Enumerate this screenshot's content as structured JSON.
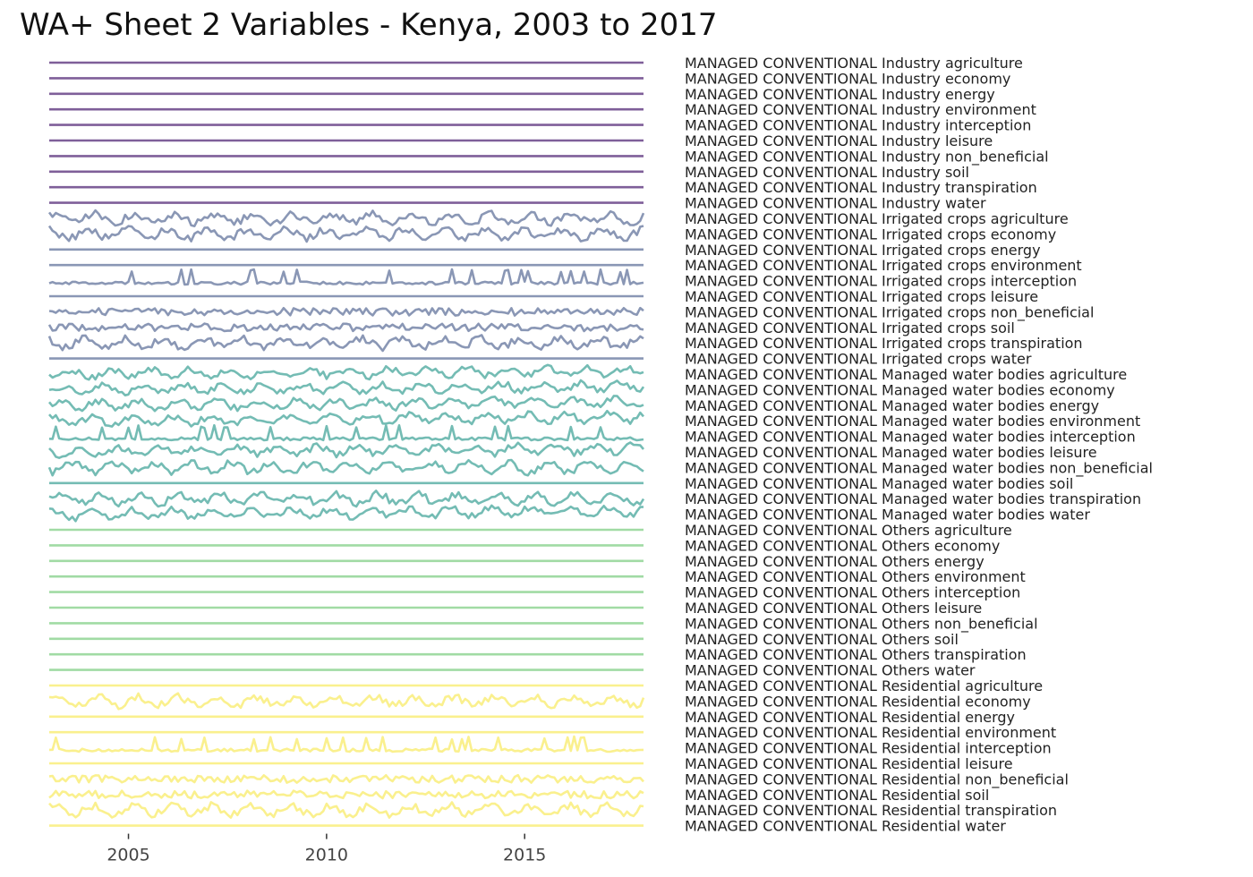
{
  "chart_data": {
    "type": "line",
    "title": "WA+ Sheet 2 Variables - Kenya, 2003 to 2017",
    "xlabel": "",
    "ylabel": "",
    "xlim": [
      2003.0,
      2018.0
    ],
    "x_ticks": [
      2005,
      2010,
      2015
    ],
    "grid": false,
    "legend": "direct labels to the right of each line",
    "series_colors": {
      "Industry": "#7f5f99",
      "Irrigated crops": "#8a97b5",
      "Managed water bodies": "#74bcb4",
      "Others": "#a1dba4",
      "Residential": "#faf08e"
    },
    "series": [
      {
        "name": "MANAGED CONVENTIONAL Industry agriculture",
        "group": "Industry",
        "pattern": "flat"
      },
      {
        "name": "MANAGED CONVENTIONAL Industry economy",
        "group": "Industry",
        "pattern": "flat"
      },
      {
        "name": "MANAGED CONVENTIONAL Industry energy",
        "group": "Industry",
        "pattern": "flat"
      },
      {
        "name": "MANAGED CONVENTIONAL Industry environment",
        "group": "Industry",
        "pattern": "flat"
      },
      {
        "name": "MANAGED CONVENTIONAL Industry interception",
        "group": "Industry",
        "pattern": "flat"
      },
      {
        "name": "MANAGED CONVENTIONAL Industry leisure",
        "group": "Industry",
        "pattern": "flat"
      },
      {
        "name": "MANAGED CONVENTIONAL Industry non_beneficial",
        "group": "Industry",
        "pattern": "flat"
      },
      {
        "name": "MANAGED CONVENTIONAL Industry soil",
        "group": "Industry",
        "pattern": "flat"
      },
      {
        "name": "MANAGED CONVENTIONAL Industry transpiration",
        "group": "Industry",
        "pattern": "flat"
      },
      {
        "name": "MANAGED CONVENTIONAL Industry water",
        "group": "Industry",
        "pattern": "flat"
      },
      {
        "name": "MANAGED CONVENTIONAL Irrigated crops agriculture",
        "group": "Irrigated crops",
        "pattern": "wavy"
      },
      {
        "name": "MANAGED CONVENTIONAL Irrigated crops economy",
        "group": "Irrigated crops",
        "pattern": "wavy"
      },
      {
        "name": "MANAGED CONVENTIONAL Irrigated crops energy",
        "group": "Irrigated crops",
        "pattern": "flat"
      },
      {
        "name": "MANAGED CONVENTIONAL Irrigated crops environment",
        "group": "Irrigated crops",
        "pattern": "flat"
      },
      {
        "name": "MANAGED CONVENTIONAL Irrigated crops interception",
        "group": "Irrigated crops",
        "pattern": "spiky"
      },
      {
        "name": "MANAGED CONVENTIONAL Irrigated crops leisure",
        "group": "Irrigated crops",
        "pattern": "flat"
      },
      {
        "name": "MANAGED CONVENTIONAL Irrigated crops non_beneficial",
        "group": "Irrigated crops",
        "pattern": "noisy"
      },
      {
        "name": "MANAGED CONVENTIONAL Irrigated crops soil",
        "group": "Irrigated crops",
        "pattern": "noisy"
      },
      {
        "name": "MANAGED CONVENTIONAL Irrigated crops transpiration",
        "group": "Irrigated crops",
        "pattern": "wavy"
      },
      {
        "name": "MANAGED CONVENTIONAL Irrigated crops water",
        "group": "Irrigated crops",
        "pattern": "flat"
      },
      {
        "name": "MANAGED CONVENTIONAL Managed water bodies agriculture",
        "group": "Managed water bodies",
        "pattern": "rising"
      },
      {
        "name": "MANAGED CONVENTIONAL Managed water bodies economy",
        "group": "Managed water bodies",
        "pattern": "rising"
      },
      {
        "name": "MANAGED CONVENTIONAL Managed water bodies energy",
        "group": "Managed water bodies",
        "pattern": "rising"
      },
      {
        "name": "MANAGED CONVENTIONAL Managed water bodies environment",
        "group": "Managed water bodies",
        "pattern": "rising"
      },
      {
        "name": "MANAGED CONVENTIONAL Managed water bodies interception",
        "group": "Managed water bodies",
        "pattern": "spiky"
      },
      {
        "name": "MANAGED CONVENTIONAL Managed water bodies leisure",
        "group": "Managed water bodies",
        "pattern": "rising"
      },
      {
        "name": "MANAGED CONVENTIONAL Managed water bodies non_beneficial",
        "group": "Managed water bodies",
        "pattern": "wavy"
      },
      {
        "name": "MANAGED CONVENTIONAL Managed water bodies soil",
        "group": "Managed water bodies",
        "pattern": "flat"
      },
      {
        "name": "MANAGED CONVENTIONAL Managed water bodies transpiration",
        "group": "Managed water bodies",
        "pattern": "wavy"
      },
      {
        "name": "MANAGED CONVENTIONAL Managed water bodies water",
        "group": "Managed water bodies",
        "pattern": "rising"
      },
      {
        "name": "MANAGED CONVENTIONAL Others agriculture",
        "group": "Others",
        "pattern": "flat"
      },
      {
        "name": "MANAGED CONVENTIONAL Others economy",
        "group": "Others",
        "pattern": "flat"
      },
      {
        "name": "MANAGED CONVENTIONAL Others energy",
        "group": "Others",
        "pattern": "flat"
      },
      {
        "name": "MANAGED CONVENTIONAL Others environment",
        "group": "Others",
        "pattern": "flat"
      },
      {
        "name": "MANAGED CONVENTIONAL Others interception",
        "group": "Others",
        "pattern": "flat"
      },
      {
        "name": "MANAGED CONVENTIONAL Others leisure",
        "group": "Others",
        "pattern": "flat"
      },
      {
        "name": "MANAGED CONVENTIONAL Others non_beneficial",
        "group": "Others",
        "pattern": "flat"
      },
      {
        "name": "MANAGED CONVENTIONAL Others soil",
        "group": "Others",
        "pattern": "flat"
      },
      {
        "name": "MANAGED CONVENTIONAL Others transpiration",
        "group": "Others",
        "pattern": "flat"
      },
      {
        "name": "MANAGED CONVENTIONAL Others water",
        "group": "Others",
        "pattern": "flat"
      },
      {
        "name": "MANAGED CONVENTIONAL Residential agriculture",
        "group": "Residential",
        "pattern": "flat"
      },
      {
        "name": "MANAGED CONVENTIONAL Residential economy",
        "group": "Residential",
        "pattern": "wavy"
      },
      {
        "name": "MANAGED CONVENTIONAL Residential energy",
        "group": "Residential",
        "pattern": "flat"
      },
      {
        "name": "MANAGED CONVENTIONAL Residential environment",
        "group": "Residential",
        "pattern": "flat"
      },
      {
        "name": "MANAGED CONVENTIONAL Residential interception",
        "group": "Residential",
        "pattern": "spiky"
      },
      {
        "name": "MANAGED CONVENTIONAL Residential leisure",
        "group": "Residential",
        "pattern": "flat"
      },
      {
        "name": "MANAGED CONVENTIONAL Residential non_beneficial",
        "group": "Residential",
        "pattern": "noisy"
      },
      {
        "name": "MANAGED CONVENTIONAL Residential soil",
        "group": "Residential",
        "pattern": "noisy"
      },
      {
        "name": "MANAGED CONVENTIONAL Residential transpiration",
        "group": "Residential",
        "pattern": "wavy"
      },
      {
        "name": "MANAGED CONVENTIONAL Residential water",
        "group": "Residential",
        "pattern": "flat"
      }
    ]
  }
}
